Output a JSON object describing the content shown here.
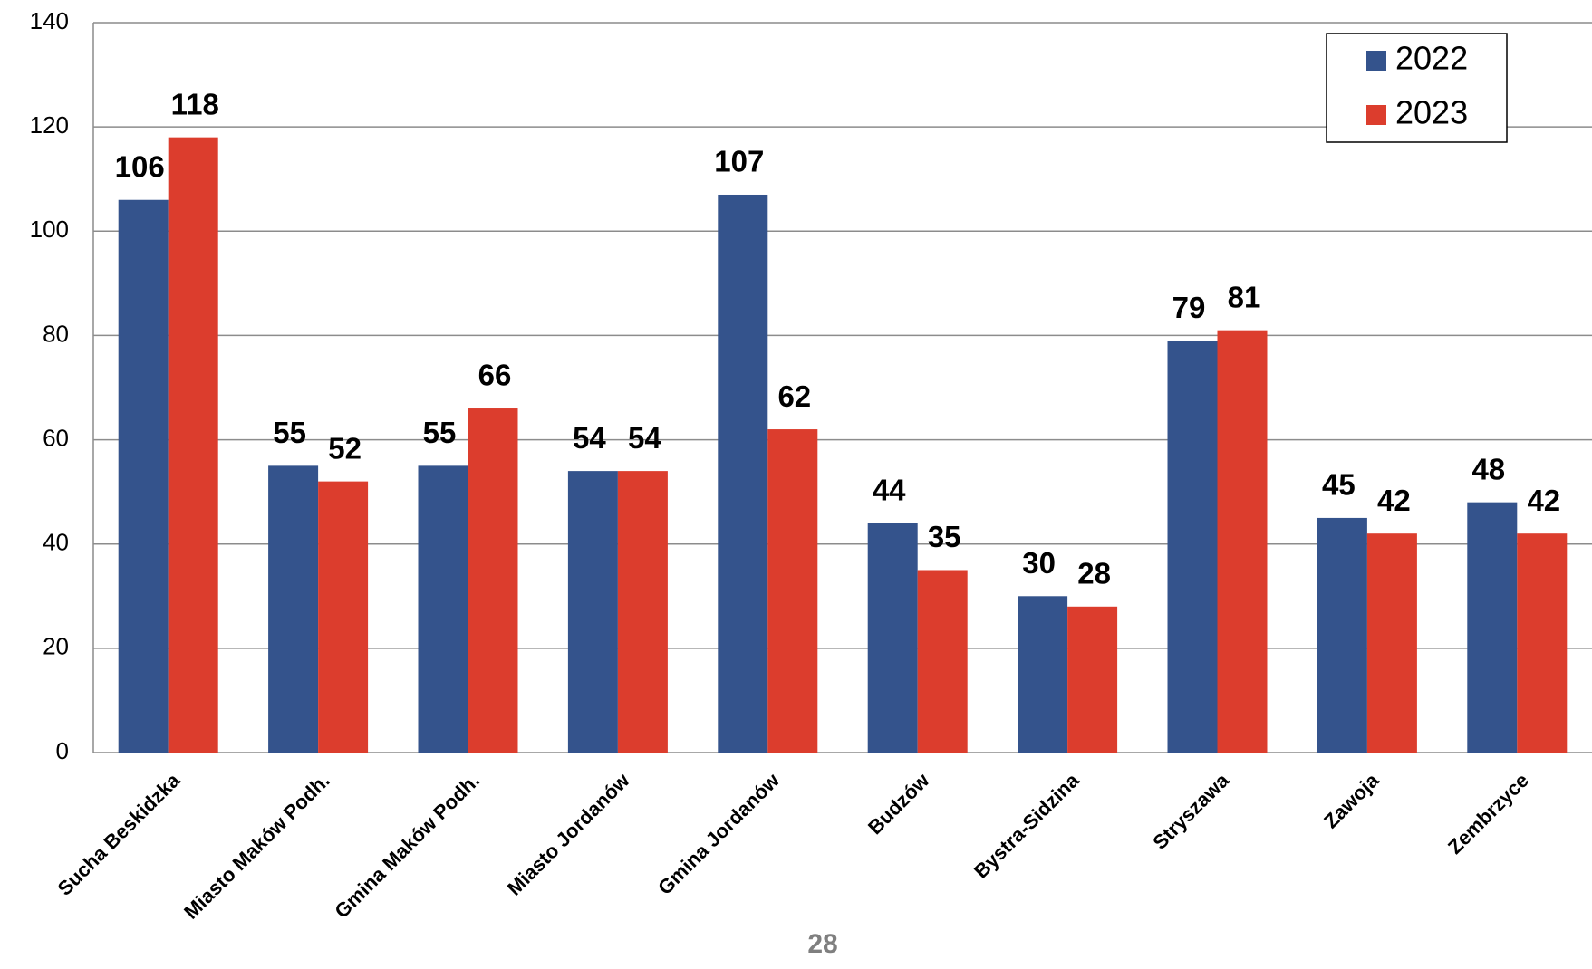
{
  "chart_data": {
    "type": "bar",
    "categories": [
      "Sucha Beskidzka",
      "Miasto Maków Podh.",
      "Gmina Maków Podh.",
      "Miasto Jordanów",
      "Gmina Jordanów",
      "Budzów",
      "Bystra-Sidzina",
      "Stryszawa",
      "Zawoja",
      "Zembrzyce"
    ],
    "series": [
      {
        "name": "2022",
        "color": "#34538c",
        "values": [
          106,
          55,
          55,
          54,
          107,
          44,
          30,
          79,
          45,
          48
        ]
      },
      {
        "name": "2023",
        "color": "#dc3d2d",
        "values": [
          118,
          52,
          66,
          54,
          62,
          35,
          28,
          81,
          42,
          42
        ]
      }
    ],
    "ylim": [
      0,
      140
    ],
    "yticks": [
      0,
      20,
      40,
      60,
      80,
      100,
      120,
      140
    ],
    "grid": true,
    "legend": "top-right",
    "page_number": "28"
  }
}
